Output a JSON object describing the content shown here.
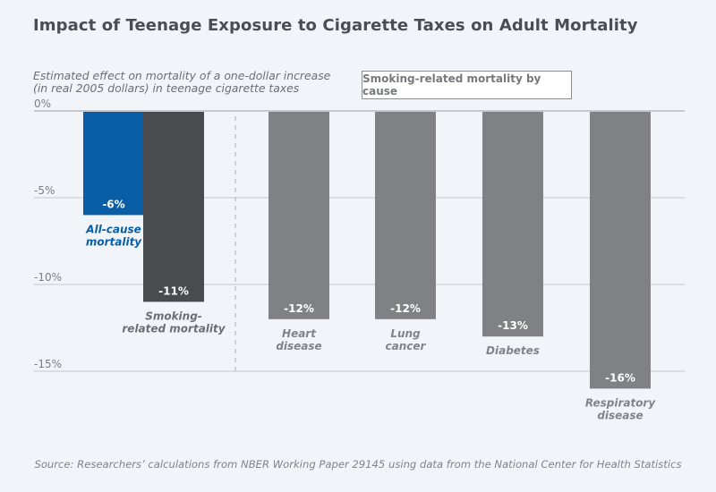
{
  "chart_data": {
    "type": "bar",
    "title": "Impact of Teenage Exposure to Cigarette Taxes on Adult Mortality",
    "ylabel": "Estimated effect on mortality of a one-dollar increase (in real 2005 dollars) in teenage cigarette taxes",
    "ylabel_lines": [
      "Estimated effect on mortality of a one-dollar increase",
      "(in real 2005 dollars) in teenage cigarette taxes"
    ],
    "xlabel": "",
    "ylim": [
      -16.5,
      0
    ],
    "yticks": [
      0,
      -5,
      -10,
      -15
    ],
    "ytick_labels": [
      "0%",
      "-5%",
      "-10%",
      "-15%"
    ],
    "grid": true,
    "group_label": "Smoking-related mortality by cause",
    "categories": [
      {
        "label_lines": [
          "All-cause",
          "mortality"
        ],
        "value": -6,
        "value_label": "-6%",
        "color": "#0a5ea6",
        "label_color": "#0a5ea6"
      },
      {
        "label_lines": [
          "Smoking-",
          "related mortality"
        ],
        "value": -11,
        "value_label": "-11%",
        "color": "#4a4b4f",
        "label_color": "#6b6e73"
      },
      {
        "label_lines": [
          "Heart",
          "disease"
        ],
        "value": -12,
        "value_label": "-12%",
        "color": "#808184",
        "label_color": "#808388"
      },
      {
        "label_lines": [
          "Lung",
          "cancer"
        ],
        "value": -12,
        "value_label": "-12%",
        "color": "#808184",
        "label_color": "#808388"
      },
      {
        "label_lines": [
          "Diabetes"
        ],
        "value": -13,
        "value_label": "-13%",
        "color": "#808184",
        "label_color": "#808388"
      },
      {
        "label_lines": [
          "Respiratory",
          "disease"
        ],
        "value": -16,
        "value_label": "-16%",
        "color": "#808184",
        "label_color": "#808388"
      }
    ],
    "source": "Source: Researchers’ calculations from NBER Working Paper 29145 using data from the National Center for Health Statistics"
  }
}
